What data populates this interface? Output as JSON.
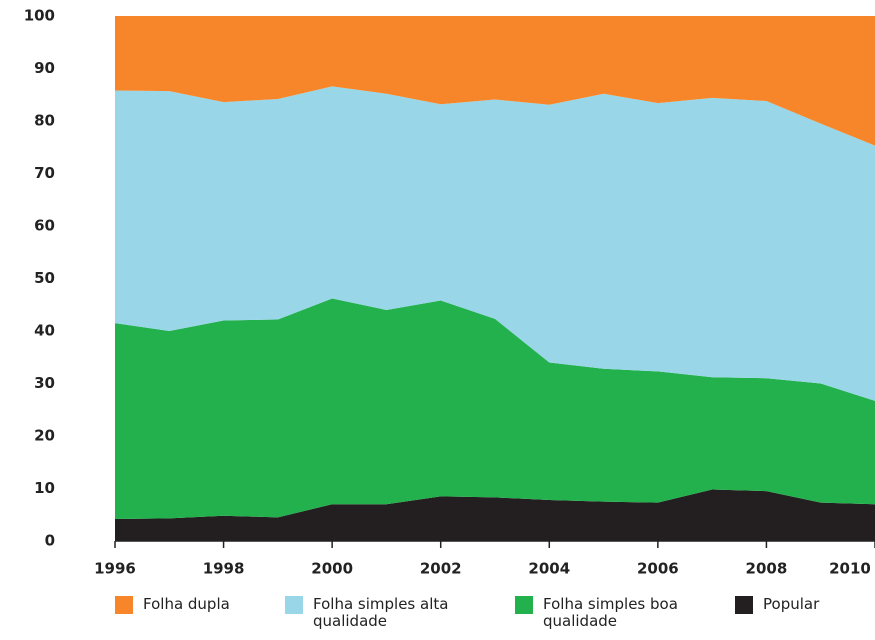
{
  "chart_data": {
    "type": "stacked-area",
    "x": [
      1996,
      1997,
      1998,
      1999,
      2000,
      2001,
      2002,
      2003,
      2004,
      2005,
      2006,
      2007,
      2008,
      2009,
      2010
    ],
    "series": [
      {
        "name": "Folha dupla",
        "color": "#f7862a",
        "values": [
          14.2,
          14.3,
          16.4,
          15.8,
          13.4,
          14.8,
          16.8,
          15.9,
          16.9,
          14.8,
          16.6,
          15.6,
          16.2,
          20.5,
          24.7
        ]
      },
      {
        "name": "Folha simples alta qualidade",
        "color": "#98d6e8",
        "values": [
          44.3,
          45.7,
          41.6,
          42.0,
          40.4,
          41.2,
          37.4,
          41.8,
          49.1,
          52.4,
          51.1,
          53.2,
          52.8,
          49.5,
          48.6
        ]
      },
      {
        "name": "Folha simples boa qualidade",
        "color": "#22b14c",
        "values": [
          37.3,
          35.7,
          37.2,
          37.7,
          39.2,
          37.0,
          37.3,
          34.0,
          26.2,
          25.3,
          25.0,
          21.4,
          21.5,
          22.7,
          19.7
        ]
      },
      {
        "name": "Popular",
        "color": "#231f20",
        "values": [
          4.2,
          4.3,
          4.8,
          4.5,
          7.0,
          7.0,
          8.5,
          8.3,
          7.8,
          7.5,
          7.3,
          9.8,
          9.5,
          7.3,
          7.0
        ]
      }
    ],
    "xlim": [
      1996,
      2010
    ],
    "xticks": [
      1996,
      1998,
      2000,
      2002,
      2004,
      2006,
      2008,
      2010
    ],
    "ylim": [
      0,
      100
    ],
    "yticks": [
      0,
      10,
      20,
      30,
      40,
      50,
      60,
      70,
      80,
      90,
      100
    ]
  }
}
